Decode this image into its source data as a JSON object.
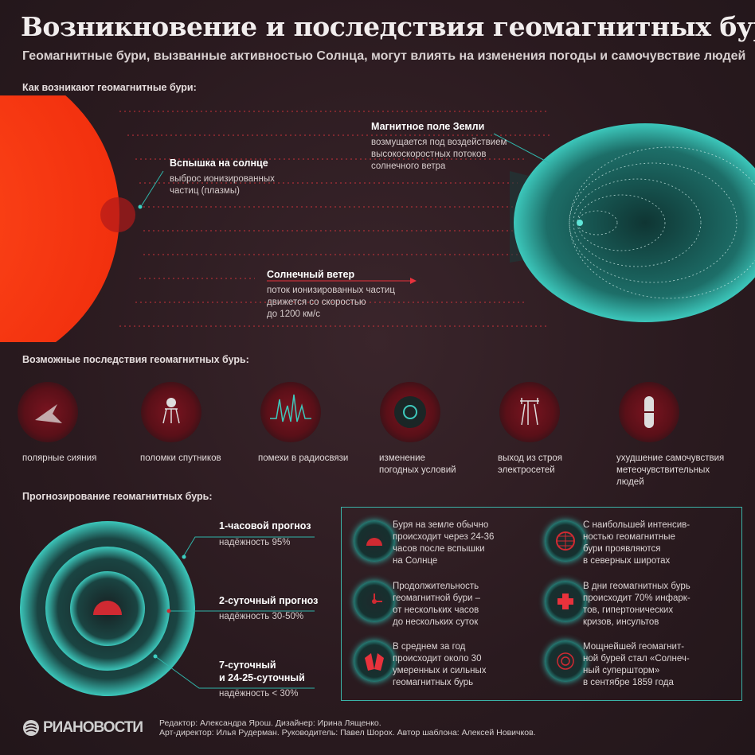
{
  "title": "Возникновение и последствия геомагнитных бурь",
  "subtitle": "Геомагнитные бури, вызванные активностью Солнца, могут влиять на изменения погоды и самочувствие людей",
  "colors": {
    "background": "#2a1b20",
    "sun": "#ff3a14",
    "magnetosphere": "#2fb5aa",
    "accent_red": "#e8323c"
  },
  "origin": {
    "heading": "Как возникают геомагнитные бури:",
    "flare": {
      "title": "Вспышка на солнце",
      "lines": [
        "выброс ионизированных",
        "частиц (плазмы)"
      ]
    },
    "field": {
      "title": "Магнитное поле Земли",
      "lines": [
        "возмущается под воздействием",
        "высокоскоростных потоков",
        "солнечного ветра"
      ]
    },
    "wind": {
      "title": "Солнечный ветер",
      "lines": [
        "поток ионизированных частиц",
        "движется со скоростью",
        "до 1200 км/с"
      ]
    }
  },
  "effects": {
    "heading": "Возможные последствия геомагнитных бурь:",
    "items": [
      {
        "icon": "aurora-icon",
        "lines": [
          "полярные сияния"
        ]
      },
      {
        "icon": "satellite-icon",
        "lines": [
          "поломки спутников"
        ]
      },
      {
        "icon": "radio-wave-icon",
        "lines": [
          "помехи в радиосвязи"
        ]
      },
      {
        "icon": "weather-icon",
        "lines": [
          "изменение",
          "погодных условий"
        ]
      },
      {
        "icon": "power-line-icon",
        "lines": [
          "выход из строя",
          "электросетей"
        ]
      },
      {
        "icon": "pill-icon",
        "lines": [
          "ухудшение самочувствия",
          "метеочувствительных",
          "людей"
        ]
      }
    ]
  },
  "forecast": {
    "heading": "Прогнозирование геомагнитных бурь:",
    "items": [
      {
        "title": [
          "1-часовой прогноз"
        ],
        "reliability": "надёжность 95%"
      },
      {
        "title": [
          "2-суточный прогноз"
        ],
        "reliability": "надёжность 30-50%"
      },
      {
        "title": [
          "7-суточный",
          "и 24-25-суточный"
        ],
        "reliability": "надёжность < 30%"
      }
    ]
  },
  "facts": [
    {
      "icon": "sun-flare-icon",
      "lines": [
        "Буря на земле обычно",
        "происходит через 24-36",
        "часов после вспышки",
        "на Солнце"
      ]
    },
    {
      "icon": "clock-icon",
      "lines": [
        "Продолжительность",
        "геомагнитной бури –",
        "от нескольких часов",
        "до нескольких суток"
      ]
    },
    {
      "icon": "storm-icon",
      "lines": [
        "В среднем за год",
        "происходит около 30",
        "умеренных и сильных",
        "геомагнитных бурь"
      ]
    },
    {
      "icon": "globe-icon",
      "lines": [
        "С наибольшей интенсив-",
        "ностью геомагнитные",
        "бури проявляются",
        "в северных широтах"
      ]
    },
    {
      "icon": "medical-cross-icon",
      "lines": [
        "В дни геомагнитных бурь",
        "происходит 70% инфарк-",
        "тов, гипертонических",
        "кризов, инсультов"
      ]
    },
    {
      "icon": "spiral-icon",
      "lines": [
        "Мощнейшей геомагнит-",
        "ной бурей стал «Солнеч-",
        "ный супершторм»",
        "в сентябре 1859 года"
      ]
    }
  ],
  "footer": {
    "logo": "РИАНОВОСТИ",
    "credits": [
      "Редактор: Александра Ярош. Дизайнер: Ирина Лященко.",
      "Арт-директор: Илья Рудерман. Руководитель: Павел Шорох. Автор шаблона: Алексей Новичков."
    ]
  }
}
